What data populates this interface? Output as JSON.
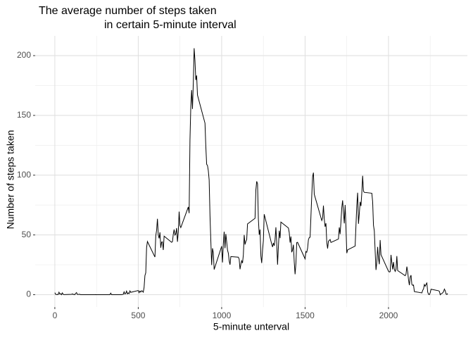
{
  "chart_data": {
    "type": "line",
    "title": [
      "The average  number of steps taken",
      "in certain 5-minute interval"
    ],
    "x_label": "5-minute unterval",
    "y_label": "Number of steps taken",
    "color": "#000000",
    "grid": true,
    "xlim": [
      -117.75,
      2472.75
    ],
    "xticks": [
      0,
      500,
      1000,
      1500,
      2000
    ],
    "xminor": [
      250,
      750,
      1250,
      1750,
      2250
    ],
    "ylim": [
      -10.3,
      216.5
    ],
    "yticks": [
      0,
      50,
      100,
      150,
      200
    ],
    "yminor": [
      25,
      75,
      125,
      175
    ],
    "x": [
      0,
      5,
      10,
      15,
      20,
      25,
      30,
      35,
      40,
      45,
      50,
      55,
      100,
      105,
      110,
      115,
      120,
      125,
      130,
      135,
      140,
      145,
      150,
      155,
      200,
      205,
      210,
      215,
      220,
      225,
      230,
      235,
      240,
      245,
      250,
      255,
      300,
      305,
      310,
      315,
      320,
      325,
      330,
      335,
      340,
      345,
      350,
      355,
      400,
      405,
      410,
      415,
      420,
      425,
      430,
      435,
      440,
      445,
      450,
      455,
      500,
      505,
      510,
      515,
      520,
      525,
      530,
      535,
      540,
      545,
      550,
      555,
      600,
      605,
      610,
      615,
      620,
      625,
      630,
      635,
      640,
      645,
      650,
      655,
      700,
      705,
      710,
      715,
      720,
      725,
      730,
      735,
      740,
      745,
      750,
      755,
      800,
      805,
      810,
      815,
      820,
      825,
      830,
      835,
      840,
      845,
      850,
      855,
      900,
      905,
      910,
      915,
      920,
      925,
      930,
      935,
      940,
      945,
      950,
      955,
      1000,
      1005,
      1010,
      1015,
      1020,
      1025,
      1030,
      1035,
      1040,
      1045,
      1050,
      1055,
      1100,
      1105,
      1110,
      1115,
      1120,
      1125,
      1130,
      1135,
      1140,
      1145,
      1150,
      1155,
      1200,
      1205,
      1210,
      1215,
      1220,
      1225,
      1230,
      1235,
      1240,
      1245,
      1250,
      1255,
      1300,
      1305,
      1310,
      1315,
      1320,
      1325,
      1330,
      1335,
      1340,
      1345,
      1350,
      1355,
      1400,
      1405,
      1410,
      1415,
      1420,
      1425,
      1430,
      1435,
      1440,
      1445,
      1450,
      1455,
      1500,
      1505,
      1510,
      1515,
      1520,
      1525,
      1530,
      1535,
      1540,
      1545,
      1550,
      1555,
      1600,
      1605,
      1610,
      1615,
      1620,
      1625,
      1630,
      1635,
      1640,
      1645,
      1650,
      1655,
      1700,
      1705,
      1710,
      1715,
      1720,
      1725,
      1730,
      1735,
      1740,
      1745,
      1750,
      1755,
      1800,
      1805,
      1810,
      1815,
      1820,
      1825,
      1830,
      1835,
      1840,
      1845,
      1850,
      1855,
      1900,
      1905,
      1910,
      1915,
      1920,
      1925,
      1930,
      1935,
      1940,
      1945,
      1950,
      1955,
      2000,
      2005,
      2010,
      2015,
      2020,
      2025,
      2030,
      2035,
      2040,
      2045,
      2050,
      2055,
      2100,
      2105,
      2110,
      2115,
      2120,
      2125,
      2130,
      2135,
      2140,
      2145,
      2150,
      2155,
      2200,
      2205,
      2210,
      2215,
      2220,
      2225,
      2230,
      2235,
      2240,
      2245,
      2250,
      2255,
      2300,
      2305,
      2310,
      2315,
      2320,
      2325,
      2330,
      2335,
      2340,
      2345,
      2350,
      2355
    ],
    "values": [
      1.7,
      0.3,
      0.1,
      0.2,
      0.1,
      2.1,
      0.5,
      0.9,
      0,
      1.5,
      0.3,
      0.1,
      0.3,
      0.7,
      0.2,
      0.3,
      0,
      1.1,
      1.8,
      0.2,
      0.2,
      0.4,
      0.3,
      0,
      0,
      0,
      0,
      0,
      0,
      0,
      0,
      0,
      0,
      0.1,
      0,
      0,
      0,
      0,
      0,
      0,
      0,
      0,
      0,
      1.3,
      0,
      0,
      0,
      0,
      0,
      0.2,
      0.3,
      2.4,
      0.6,
      1.2,
      3.0,
      0.7,
      1.5,
      0.9,
      3.2,
      2.0,
      3.5,
      1.7,
      3.1,
      2.2,
      3.3,
      3.0,
      2.1,
      6.1,
      16.0,
      18.3,
      39.5,
      44.5,
      31.5,
      49.3,
      53.8,
      63.5,
      50.0,
      47.1,
      52.2,
      39.3,
      44.0,
      44.2,
      37.4,
      49.0,
      43.8,
      44.4,
      50.5,
      54.5,
      49.9,
      51.0,
      55.7,
      44.3,
      52.3,
      69.5,
      57.8,
      56.2,
      73.4,
      68.2,
      129.4,
      157.5,
      171.2,
      155.4,
      177.3,
      206.2,
      195.9,
      179.6,
      183.4,
      167.0,
      143.5,
      124.0,
      109.1,
      108.1,
      103.7,
      96.0,
      66.2,
      45.2,
      24.8,
      38.8,
      35.0,
      21.1,
      40.6,
      27.0,
      42.4,
      52.7,
      38.9,
      50.8,
      44.3,
      37.4,
      34.7,
      28.3,
      25.1,
      31.9,
      31.4,
      29.7,
      21.3,
      25.5,
      28.4,
      26.5,
      33.4,
      50.0,
      42.0,
      44.6,
      46.0,
      59.2,
      63.9,
      87.7,
      94.8,
      92.8,
      63.4,
      50.2,
      54.5,
      32.4,
      26.5,
      37.7,
      45.1,
      67.3,
      42.3,
      39.9,
      43.3,
      41.0,
      46.2,
      56.4,
      42.8,
      25.1,
      40.0,
      53.5,
      47.3,
      60.8,
      55.8,
      52.0,
      43.6,
      48.7,
      35.5,
      37.5,
      41.8,
      27.5,
      17.1,
      26.1,
      43.6,
      43.8,
      30.0,
      36.1,
      35.5,
      38.8,
      46.0,
      47.8,
      48.1,
      65.3,
      82.9,
      98.7,
      102.1,
      84.0,
      62.1,
      64.1,
      74.5,
      63.2,
      56.9,
      59.8,
      43.9,
      38.6,
      44.7,
      45.5,
      46.2,
      43.7,
      46.6,
      56.3,
      50.7,
      61.2,
      72.7,
      78.9,
      68.9,
      59.7,
      75.1,
      56.5,
      34.8,
      37.5,
      40.7,
      58.0,
      74.7,
      85.3,
      59.3,
      67.8,
      77.7,
      74.2,
      85.3,
      99.5,
      86.6,
      85.6,
      84.9,
      77.8,
      58.0,
      53.4,
      36.3,
      20.7,
      27.4,
      40.0,
      30.2,
      25.5,
      45.7,
      33.5,
      19.6,
      19.0,
      19.3,
      33.3,
      26.8,
      21.2,
      27.3,
      21.3,
      19.5,
      21.3,
      32.3,
      20.2,
      15.9,
      17.2,
      23.5,
      19.2,
      12.5,
      8.0,
      14.7,
      16.3,
      8.7,
      7.8,
      8.1,
      2.6,
      1.5,
      3.7,
      4.8,
      8.5,
      7.1,
      8.7,
      9.8,
      2.2,
      0.3,
      0.1,
      1.6,
      4.6,
      3.3,
      2.8,
      0,
      0.8,
      1.0,
      1.6,
      2.6,
      4.7,
      3.3,
      0.6,
      0.2,
      1.1
    ]
  }
}
